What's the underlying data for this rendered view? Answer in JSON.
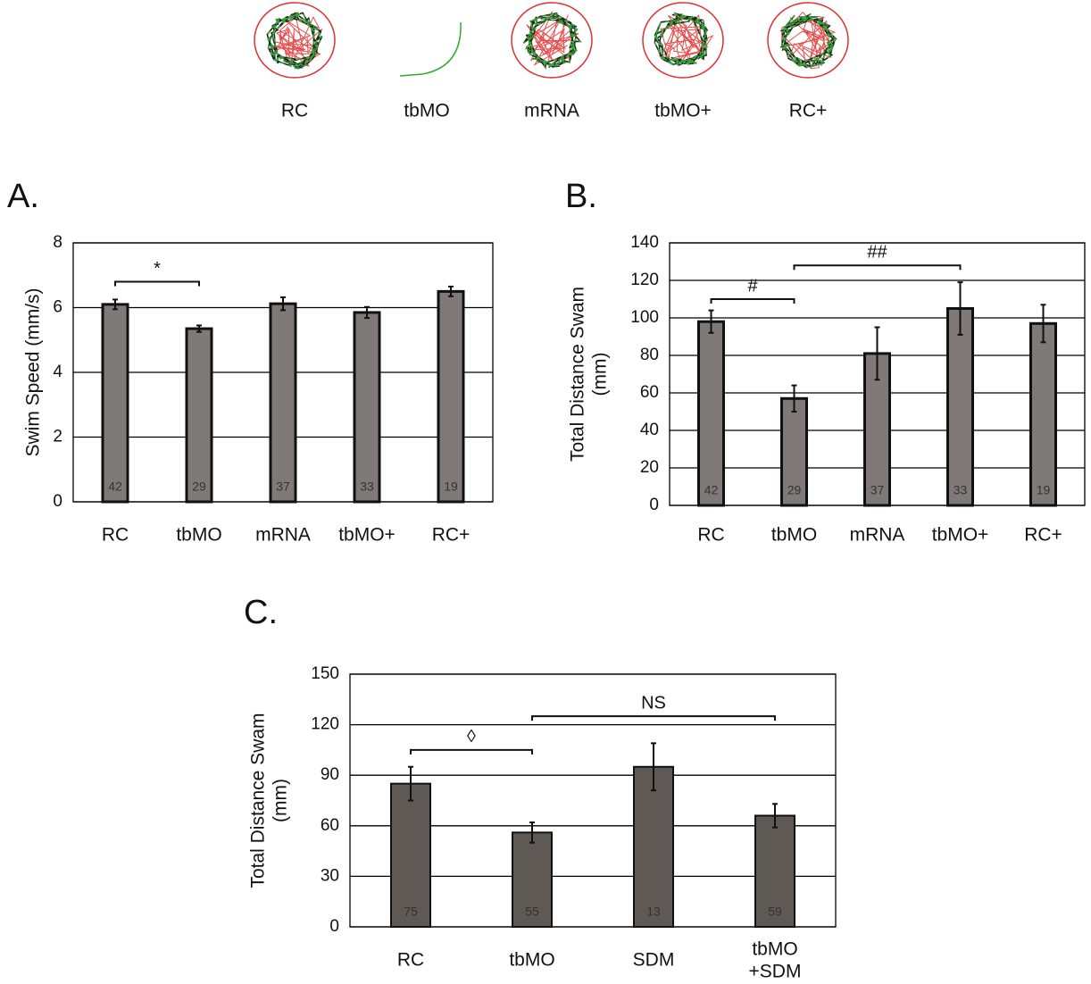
{
  "tracks": [
    "RC",
    "tbMO",
    "mRNA",
    "tbMO+",
    "RC+"
  ],
  "chart_data": [
    {
      "type": "bar",
      "panel": "A.",
      "ylabel": "Swim Speed (mm/s)",
      "categories": [
        "RC",
        "tbMO",
        "mRNA",
        "tbMO+",
        "RC+"
      ],
      "values": [
        6.1,
        5.35,
        6.12,
        5.85,
        6.5
      ],
      "errors": [
        0.15,
        0.1,
        0.2,
        0.17,
        0.15
      ],
      "counts": [
        42,
        29,
        37,
        33,
        19
      ],
      "color": "#7f7a77",
      "ylim": [
        0,
        8
      ],
      "yticks": [
        0,
        2,
        4,
        6,
        8
      ],
      "grid": true,
      "annotations": [
        {
          "text": "*",
          "from": 0,
          "to": 1,
          "y": 6.8
        }
      ]
    },
    {
      "type": "bar",
      "panel": "B.",
      "ylabel": "Total Distance Swam\n(mm)",
      "categories": [
        "RC",
        "tbMO",
        "mRNA",
        "tbMO+",
        "RC+"
      ],
      "values": [
        98,
        57,
        81,
        105,
        97
      ],
      "errors": [
        6,
        7,
        14,
        14,
        10
      ],
      "counts": [
        42,
        29,
        37,
        33,
        19
      ],
      "color": "#7f7a77",
      "ylim": [
        0,
        140
      ],
      "yticks": [
        0,
        20,
        40,
        60,
        80,
        100,
        120,
        140
      ],
      "grid": true,
      "annotations": [
        {
          "text": "#",
          "from": 0,
          "to": 1,
          "y": 110
        },
        {
          "text": "##",
          "from": 1,
          "to": 3,
          "y": 128
        }
      ]
    },
    {
      "type": "bar",
      "panel": "C.",
      "ylabel": "Total Distance Swam\n(mm)",
      "categories": [
        "RC",
        "tbMO",
        "SDM",
        "tbMO\n+SDM"
      ],
      "values": [
        85,
        56,
        95,
        66
      ],
      "errors": [
        10,
        6,
        14,
        7
      ],
      "counts": [
        75,
        55,
        13,
        59
      ],
      "color": "#5e5955",
      "ylim": [
        0,
        150
      ],
      "yticks": [
        0,
        30,
        60,
        90,
        120,
        150
      ],
      "grid": true,
      "annotations": [
        {
          "text": "◊",
          "from": 0,
          "to": 1,
          "y": 105
        },
        {
          "text": "NS",
          "from": 1,
          "to": 3,
          "y": 125
        }
      ]
    }
  ]
}
